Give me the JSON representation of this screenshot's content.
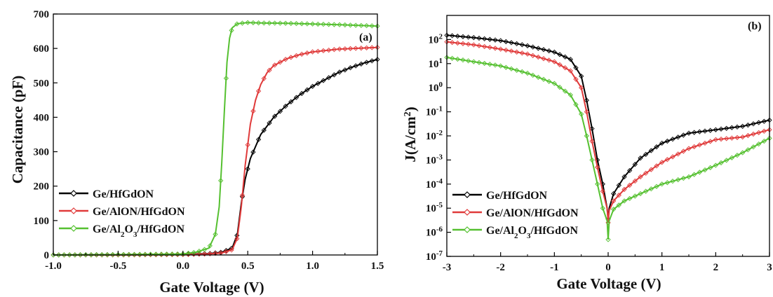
{
  "chart_data": [
    {
      "type": "line",
      "panel_label": "(a)",
      "xlabel": "Gate Voltage (V)",
      "ylabel": "Capacitance (pF)",
      "xlim": [
        -1.0,
        1.5
      ],
      "ylim": [
        0,
        700
      ],
      "xticks": [
        "-1.0",
        "-0.5",
        "0.0",
        "0.5",
        "1.0",
        "1.5"
      ],
      "xtick_values": [
        -1.0,
        -0.5,
        0.0,
        0.5,
        1.0,
        1.5
      ],
      "yticks": [
        "0",
        "100",
        "200",
        "300",
        "400",
        "500",
        "600",
        "700"
      ],
      "ytick_values": [
        0,
        100,
        200,
        300,
        400,
        500,
        600,
        700
      ],
      "legend_position": "lower-left",
      "series": [
        {
          "name": "Ge/HfGdON",
          "color": "#000000",
          "x": [
            -1.0,
            -0.5,
            0.0,
            0.2,
            0.3,
            0.38,
            0.42,
            0.45,
            0.48,
            0.52,
            0.6,
            0.7,
            0.8,
            0.9,
            1.0,
            1.1,
            1.2,
            1.3,
            1.4,
            1.5
          ],
          "y": [
            0,
            1,
            2,
            4,
            8,
            20,
            60,
            150,
            220,
            280,
            350,
            400,
            435,
            465,
            490,
            510,
            530,
            545,
            558,
            568
          ]
        },
        {
          "name": "Ge/AlON/HfGdON",
          "color": "#e03a3a",
          "x": [
            -1.0,
            -0.5,
            0.0,
            0.2,
            0.3,
            0.38,
            0.42,
            0.45,
            0.48,
            0.52,
            0.56,
            0.6,
            0.65,
            0.7,
            0.8,
            0.9,
            1.0,
            1.2,
            1.5
          ],
          "y": [
            0,
            0,
            1,
            3,
            6,
            15,
            50,
            140,
            260,
            380,
            450,
            495,
            530,
            550,
            570,
            582,
            590,
            598,
            603
          ]
        },
        {
          "name": "Ge/Al",
          "name_sub": "2",
          "name_mid": "O",
          "name_sub2": "3",
          "name_end": "/HfGdON",
          "color": "#55c030",
          "x": [
            -1.0,
            -0.5,
            0.0,
            0.1,
            0.2,
            0.25,
            0.28,
            0.3,
            0.32,
            0.34,
            0.36,
            0.38,
            0.42,
            0.5,
            0.6,
            0.8,
            1.0,
            1.2,
            1.5
          ],
          "y": [
            0,
            1,
            3,
            8,
            20,
            60,
            140,
            270,
            420,
            560,
            630,
            660,
            672,
            675,
            674,
            673,
            671,
            669,
            665
          ]
        }
      ]
    },
    {
      "type": "line",
      "panel_label": "(b)",
      "xlabel": "Gate Voltage (V)",
      "ylabel": "J(A/cm",
      "ylabel_sup": "2",
      "ylabel_end": ")",
      "xlim": [
        -3,
        3
      ],
      "ylim": [
        1e-07,
        1000
      ],
      "yscale": "log",
      "xticks": [
        "-3",
        "-2",
        "-1",
        "0",
        "1",
        "2",
        "3"
      ],
      "xtick_values": [
        -3,
        -2,
        -1,
        0,
        1,
        2,
        3
      ],
      "yticks_base": "10",
      "yticks_exp": [
        "2",
        "1",
        "0",
        "-1",
        "-2",
        "-3",
        "-4",
        "-5",
        "-6",
        "-7"
      ],
      "ytick_values": [
        100,
        10,
        1,
        0.1,
        0.01,
        0.001,
        0.0001,
        1e-05,
        1e-06,
        1e-07
      ],
      "legend_position": "lower-left",
      "series": [
        {
          "name": "Ge/HfGdON",
          "color": "#000000",
          "x": [
            -3,
            -2.5,
            -2,
            -1.5,
            -1,
            -0.7,
            -0.5,
            -0.4,
            -0.3,
            -0.2,
            -0.1,
            -0.02,
            0,
            0.02,
            0.1,
            0.3,
            0.6,
            1.0,
            1.5,
            2.0,
            2.5,
            3.0
          ],
          "y": [
            150,
            120,
            90,
            55,
            30,
            15,
            3,
            0.3,
            0.02,
            0.001,
            0.0001,
            1e-05,
            3.5e-06,
            1e-05,
            4e-05,
            0.0002,
            0.0012,
            0.005,
            0.013,
            0.018,
            0.025,
            0.045
          ]
        },
        {
          "name": "Ge/AlON/HfGdON",
          "color": "#e03a3a",
          "x": [
            -3,
            -2.5,
            -2,
            -1.5,
            -1,
            -0.7,
            -0.5,
            -0.4,
            -0.3,
            -0.2,
            -0.1,
            -0.02,
            0,
            0.02,
            0.1,
            0.3,
            0.6,
            1.0,
            1.5,
            2.0,
            2.5,
            3.0
          ],
          "y": [
            80,
            60,
            40,
            25,
            12,
            5,
            1,
            0.1,
            0.006,
            0.0005,
            5e-05,
            1e-05,
            2.5e-06,
            8e-06,
            2e-05,
            6e-05,
            0.0002,
            0.0008,
            0.003,
            0.007,
            0.009,
            0.018
          ]
        },
        {
          "name": "Ge/Al",
          "name_sub": "2",
          "name_mid": "O",
          "name_sub2": "3",
          "name_end": "/HfGdON",
          "color": "#55c030",
          "x": [
            -3,
            -2.5,
            -2,
            -1.5,
            -1,
            -0.7,
            -0.5,
            -0.4,
            -0.3,
            -0.2,
            -0.1,
            -0.02,
            0,
            0.02,
            0.1,
            0.3,
            0.6,
            1.0,
            1.5,
            2.0,
            2.5,
            3.0
          ],
          "y": [
            18,
            12,
            8,
            4,
            1.5,
            0.5,
            0.08,
            0.01,
            0.001,
            0.0001,
            1e-05,
            3e-06,
            5e-07,
            3e-06,
            9e-06,
            2e-05,
            4e-05,
            0.0001,
            0.0002,
            0.0006,
            0.002,
            0.008
          ]
        }
      ]
    }
  ]
}
